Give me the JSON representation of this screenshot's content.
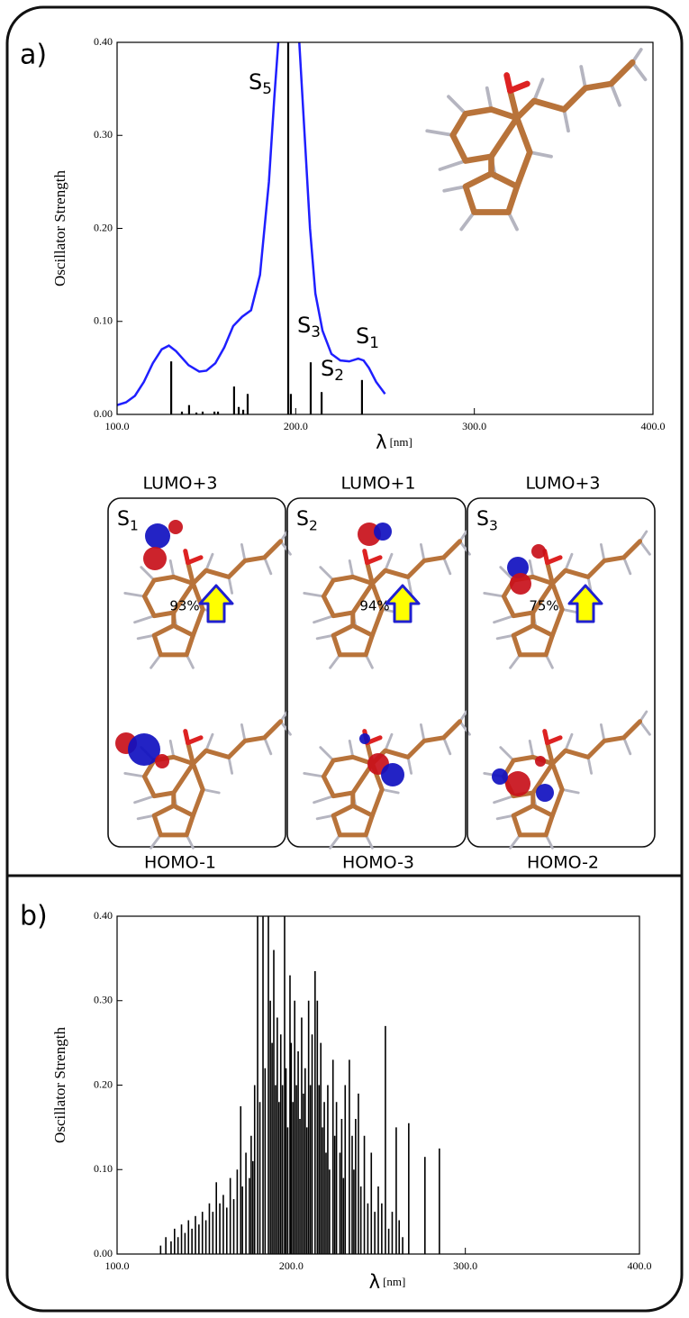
{
  "chart_data": [
    {
      "type": "line",
      "panel_label": "a)",
      "y_label": "Oscillator Strength",
      "x_label": "λ",
      "x_unit": "[nm]",
      "xlim": [
        100,
        400
      ],
      "ylim": [
        0,
        0.4
      ],
      "xticks": [
        {
          "value": 100,
          "label": "100.0"
        },
        {
          "value": 200,
          "label": "200.0"
        },
        {
          "value": 300,
          "label": "300.0"
        },
        {
          "value": 400,
          "label": "400.0"
        }
      ],
      "yticks": [
        {
          "value": 0,
          "label": "0.00"
        },
        {
          "value": 0.1,
          "label": "0.10"
        },
        {
          "value": 0.2,
          "label": "0.20"
        },
        {
          "value": 0.3,
          "label": "0.30"
        },
        {
          "value": 0.4,
          "label": "0.40"
        }
      ],
      "series": [
        {
          "style": "line",
          "color": "#1f1fff",
          "x": [
            100,
            105,
            110,
            115,
            120,
            125,
            129,
            133,
            140,
            146,
            150,
            155,
            160,
            165,
            170,
            175,
            180,
            185,
            188,
            191,
            195,
            199,
            202,
            205,
            208,
            211,
            215,
            220,
            225,
            230,
            235,
            238,
            241,
            245,
            250
          ],
          "values": [
            0.01,
            0.013,
            0.02,
            0.035,
            0.055,
            0.07,
            0.074,
            0.068,
            0.053,
            0.046,
            0.047,
            0.055,
            0.072,
            0.095,
            0.105,
            0.112,
            0.15,
            0.25,
            0.34,
            0.42,
            0.55,
            0.5,
            0.4,
            0.3,
            0.2,
            0.13,
            0.09,
            0.065,
            0.058,
            0.057,
            0.06,
            0.058,
            0.05,
            0.035,
            0.022
          ]
        },
        {
          "style": "stick",
          "color": "#000000",
          "x": [
            130.3,
            136.3,
            140.3,
            144.4,
            147.9,
            154.5,
            156.5,
            165.5,
            168.1,
            170.6,
            173.1,
            195.8,
            197.3,
            208.4,
            214.5,
            237.1
          ],
          "values": [
            0.057,
            0.003,
            0.01,
            0.002,
            0.003,
            0.003,
            0.003,
            0.03,
            0.008,
            0.005,
            0.022,
            0.4,
            0.022,
            0.056,
            0.024,
            0.037
          ]
        }
      ],
      "annotations": [
        {
          "base": "S",
          "sub": "5"
        },
        {
          "base": "S",
          "sub": "3"
        },
        {
          "base": "S",
          "sub": "2"
        },
        {
          "base": "S",
          "sub": "1"
        }
      ]
    },
    {
      "type": "stick",
      "panel_label": "b)",
      "y_label": "Oscillator Strength",
      "x_label": "λ",
      "x_unit": "[nm]",
      "xlim": [
        100,
        400
      ],
      "ylim": [
        0,
        0.4
      ],
      "xticks": [
        {
          "value": 100,
          "label": "100.0"
        },
        {
          "value": 200,
          "label": "200.0"
        },
        {
          "value": 300,
          "label": "300.0"
        },
        {
          "value": 400,
          "label": "400.0"
        }
      ],
      "yticks": [
        {
          "value": 0,
          "label": "0.00"
        },
        {
          "value": 0.1,
          "label": "0.10"
        },
        {
          "value": 0.2,
          "label": "0.20"
        },
        {
          "value": 0.3,
          "label": "0.30"
        },
        {
          "value": 0.4,
          "label": "0.40"
        }
      ],
      "series": [
        {
          "style": "stick",
          "color": "#000000",
          "x": [
            125,
            128,
            131,
            133,
            135,
            137,
            139,
            141,
            143,
            145,
            147,
            149,
            151,
            153,
            155,
            157,
            159,
            161,
            163,
            165,
            167,
            169,
            171,
            172,
            174,
            176,
            177,
            178,
            179,
            180.7,
            182,
            183.8,
            185,
            186.9,
            188,
            189,
            190,
            191,
            192,
            193,
            194,
            195,
            196.2,
            197,
            198,
            199.3,
            200,
            201,
            202,
            203,
            204,
            205,
            206,
            207,
            208,
            209,
            210,
            211,
            212,
            213.7,
            215,
            216,
            217,
            218,
            219,
            220,
            221,
            222,
            224,
            225,
            226,
            228,
            229,
            230,
            231,
            233.4,
            235,
            236,
            237,
            238.6,
            240,
            242,
            244,
            246,
            248,
            250,
            252,
            254.1,
            256,
            258,
            260.3,
            262,
            264,
            267.5,
            276.8,
            285.1
          ],
          "values": [
            0.01,
            0.02,
            0.015,
            0.03,
            0.02,
            0.035,
            0.025,
            0.04,
            0.03,
            0.045,
            0.035,
            0.05,
            0.04,
            0.06,
            0.05,
            0.085,
            0.06,
            0.07,
            0.055,
            0.09,
            0.065,
            0.1,
            0.175,
            0.08,
            0.12,
            0.09,
            0.14,
            0.11,
            0.2,
            0.4,
            0.18,
            0.4,
            0.22,
            0.4,
            0.3,
            0.25,
            0.36,
            0.2,
            0.28,
            0.18,
            0.26,
            0.2,
            0.4,
            0.22,
            0.15,
            0.33,
            0.25,
            0.18,
            0.3,
            0.2,
            0.24,
            0.16,
            0.28,
            0.19,
            0.22,
            0.15,
            0.3,
            0.2,
            0.26,
            0.335,
            0.3,
            0.2,
            0.25,
            0.15,
            0.18,
            0.12,
            0.2,
            0.1,
            0.23,
            0.14,
            0.18,
            0.12,
            0.16,
            0.09,
            0.2,
            0.23,
            0.14,
            0.1,
            0.16,
            0.19,
            0.08,
            0.14,
            0.06,
            0.12,
            0.05,
            0.08,
            0.06,
            0.27,
            0.03,
            0.05,
            0.15,
            0.04,
            0.02,
            0.155,
            0.115,
            0.125
          ]
        }
      ]
    }
  ],
  "orbital_panel": {
    "columns": [
      {
        "lumo": "LUMO+3",
        "state": {
          "base": "S",
          "sub": "1"
        },
        "percent": "93%",
        "homo": "HOMO-1"
      },
      {
        "lumo": "LUMO+1",
        "state": {
          "base": "S",
          "sub": "2"
        },
        "percent": "94%",
        "homo": "HOMO-3"
      },
      {
        "lumo": "LUMO+3",
        "state": {
          "base": "S",
          "sub": "3"
        },
        "percent": "75%",
        "homo": "HOMO-2"
      }
    ]
  }
}
